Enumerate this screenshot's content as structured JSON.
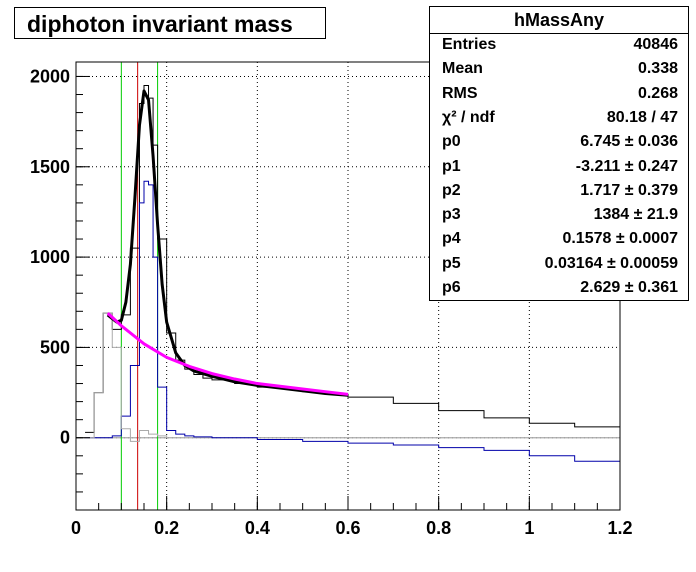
{
  "title": "diphoton invariant mass",
  "stats": {
    "name": "hMassAny",
    "rows": [
      {
        "key": "Entries",
        "value": "40846"
      },
      {
        "key": "Mean",
        "value": "0.338"
      },
      {
        "key": "RMS",
        "value": "0.268"
      },
      {
        "key": "χ² / ndf",
        "value": "80.18 / 47"
      },
      {
        "key": "p0",
        "value": "6.745 ± 0.036"
      },
      {
        "key": "p1",
        "value": "-3.211 ± 0.247"
      },
      {
        "key": "p2",
        "value": "1.717 ± 0.379"
      },
      {
        "key": "p3",
        "value": "1384 ± 21.9"
      },
      {
        "key": "p4",
        "value": "0.1578 ± 0.0007"
      },
      {
        "key": "p5",
        "value": "0.03164 ± 0.00059"
      },
      {
        "key": "p6",
        "value": "2.629 ± 0.361"
      }
    ]
  },
  "chart_data": {
    "type": "line",
    "title": "diphoton invariant mass",
    "xlabel": "",
    "ylabel": "",
    "xlim": [
      0,
      1.2
    ],
    "ylim": [
      -400,
      2080
    ],
    "xticks": [
      "0",
      "0.2",
      "0.4",
      "0.6",
      "0.8",
      "1",
      "1.2"
    ],
    "yticks": [
      "0",
      "500",
      "1000",
      "1500",
      "2000"
    ],
    "grid": true,
    "vertical_lines": [
      {
        "x": 0.1,
        "color": "#00cc00"
      },
      {
        "x": 0.136,
        "color": "#cc0000"
      },
      {
        "x": 0.18,
        "color": "#00cc00"
      }
    ],
    "series": [
      {
        "color": "#000000",
        "style": "hist",
        "x": [
          0.02,
          0.04,
          0.06,
          0.08,
          0.1,
          0.12,
          0.14,
          0.15,
          0.16,
          0.17,
          0.18,
          0.2,
          0.22,
          0.24,
          0.26,
          0.28,
          0.3,
          0.35,
          0.4,
          0.45,
          0.5,
          0.55,
          0.6,
          0.7,
          0.8,
          0.9,
          1.0,
          1.1,
          1.2
        ],
        "y": [
          30,
          250,
          690,
          600,
          680,
          1050,
          1850,
          1950,
          1880,
          1620,
          1100,
          580,
          430,
          380,
          350,
          330,
          320,
          300,
          280,
          270,
          255,
          240,
          225,
          190,
          150,
          110,
          80,
          60,
          40
        ]
      },
      {
        "color": "#0000aa",
        "style": "hist",
        "x": [
          0.02,
          0.04,
          0.06,
          0.08,
          0.1,
          0.12,
          0.14,
          0.15,
          0.16,
          0.17,
          0.18,
          0.2,
          0.22,
          0.24,
          0.26,
          0.3,
          0.4,
          0.5,
          0.6,
          0.7,
          0.8,
          0.9,
          1.0,
          1.1,
          1.2
        ],
        "y": [
          0,
          0,
          0,
          10,
          120,
          400,
          1300,
          1420,
          1400,
          1000,
          280,
          40,
          20,
          10,
          5,
          0,
          -10,
          -20,
          -30,
          -40,
          -55,
          -70,
          -100,
          -130,
          -180
        ]
      },
      {
        "color": "#aaaaaa",
        "style": "hist",
        "x": [
          0.02,
          0.04,
          0.06,
          0.08,
          0.1,
          0.12,
          0.14,
          0.16,
          0.18,
          0.2
        ],
        "y": [
          0,
          250,
          690,
          500,
          50,
          -20,
          40,
          20,
          10,
          0
        ]
      },
      {
        "color": "#000000",
        "style": "fit",
        "x": [
          0.07,
          0.08,
          0.09,
          0.1,
          0.11,
          0.12,
          0.13,
          0.14,
          0.15,
          0.16,
          0.17,
          0.18,
          0.19,
          0.2,
          0.22,
          0.24,
          0.26,
          0.3,
          0.35,
          0.4,
          0.45,
          0.5,
          0.55,
          0.6
        ],
        "y": [
          680,
          660,
          640,
          650,
          750,
          960,
          1330,
          1730,
          1920,
          1870,
          1560,
          1180,
          850,
          640,
          470,
          400,
          370,
          340,
          310,
          290,
          275,
          260,
          245,
          235
        ]
      },
      {
        "color": "#ff00ff",
        "style": "fit",
        "x": [
          0.07,
          0.1,
          0.15,
          0.2,
          0.25,
          0.3,
          0.35,
          0.4,
          0.45,
          0.5,
          0.55,
          0.6
        ],
        "y": [
          690,
          620,
          520,
          445,
          395,
          355,
          325,
          300,
          285,
          270,
          255,
          240
        ]
      }
    ]
  }
}
